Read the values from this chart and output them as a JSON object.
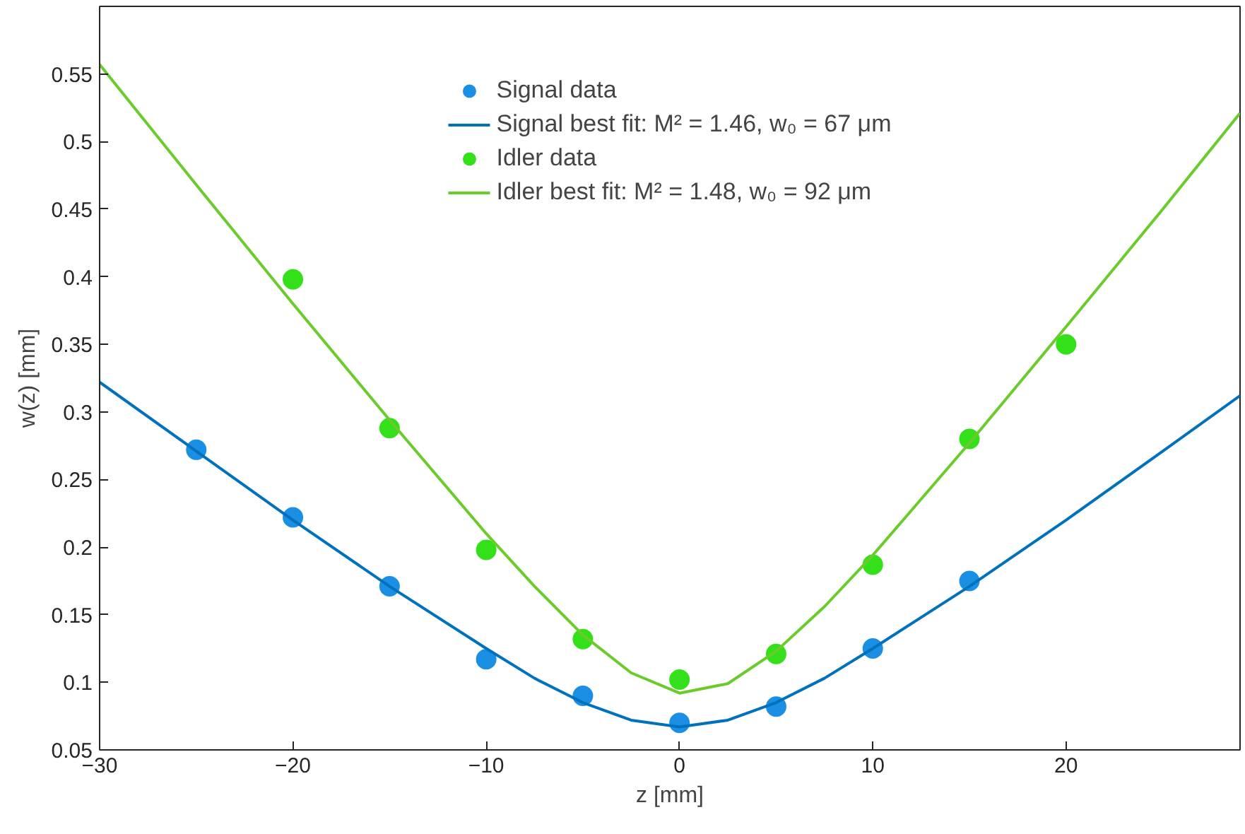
{
  "chart_data": {
    "type": "scatter",
    "xlabel": "z [mm]",
    "ylabel": "w(z) [mm]",
    "xlim": [
      -30,
      29
    ],
    "ylim": [
      0.05,
      0.6
    ],
    "xticks": [
      -30,
      -20,
      -10,
      0,
      10,
      20
    ],
    "yticks": [
      0.05,
      0.1,
      0.15,
      0.2,
      0.25,
      0.3,
      0.35,
      0.4,
      0.45,
      0.5,
      0.55
    ],
    "grid": false,
    "legend": "top",
    "series": [
      {
        "name": "Signal data",
        "marker": "circle",
        "color": "#1a8fe3",
        "x": [
          -25,
          -20,
          -15,
          -10,
          -5,
          0,
          5,
          10,
          15
        ],
        "values": [
          0.272,
          0.222,
          0.171,
          0.117,
          0.09,
          0.07,
          0.082,
          0.125,
          0.175
        ]
      },
      {
        "name": "Signal best fit: M² = 1.46, w₀ = 67 μm",
        "type": "line",
        "line_style": "solid",
        "color": "#0072bd",
        "x": [
          -30,
          -25,
          -20,
          -15,
          -10,
          -7.5,
          -5,
          -2.5,
          0,
          2.5,
          5,
          7.5,
          10,
          15,
          20,
          25,
          29
        ],
        "values": [
          0.322,
          0.271,
          0.22,
          0.171,
          0.125,
          0.103,
          0.085,
          0.072,
          0.067,
          0.072,
          0.085,
          0.103,
          0.125,
          0.171,
          0.22,
          0.271,
          0.312
        ]
      },
      {
        "name": "Idler data",
        "marker": "circle",
        "color": "#33e01a",
        "x": [
          -20,
          -15,
          -10,
          -5,
          0,
          5,
          10,
          15,
          20
        ],
        "values": [
          0.398,
          0.288,
          0.198,
          0.132,
          0.102,
          0.121,
          0.187,
          0.28,
          0.35
        ]
      },
      {
        "name": "Idler best fit: M² = 1.48, w₀ = 92 μm",
        "type": "line",
        "line_style": "solid",
        "color": "#6acc2a",
        "x": [
          -30,
          -25,
          -20,
          -15,
          -10,
          -7.5,
          -5,
          -2.5,
          0,
          2.5,
          5,
          7.5,
          10,
          15,
          20,
          25,
          29
        ],
        "values": [
          0.557,
          0.468,
          0.38,
          0.294,
          0.21,
          0.171,
          0.135,
          0.107,
          0.092,
          0.099,
          0.123,
          0.156,
          0.194,
          0.277,
          0.363,
          0.45,
          0.521
        ]
      }
    ]
  }
}
